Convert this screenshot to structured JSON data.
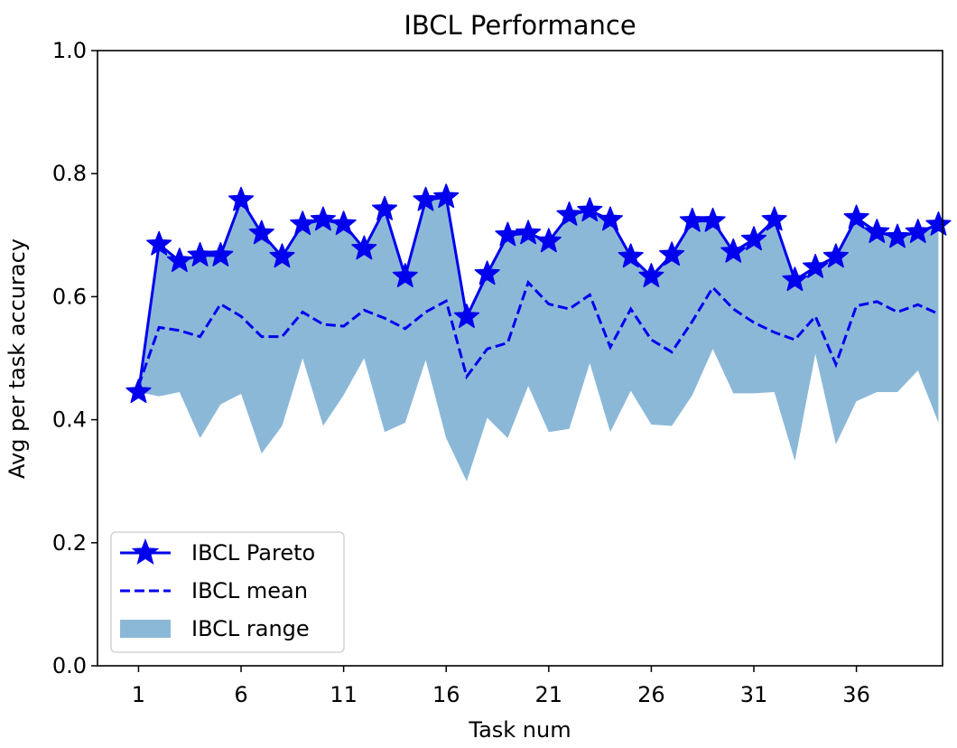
{
  "chart_data": {
    "type": "line",
    "title": "IBCL Performance",
    "xlabel": "Task num",
    "ylabel": "Avg per task accuracy",
    "xlim": [
      -1,
      40.2
    ],
    "ylim": [
      0.0,
      1.0
    ],
    "xticks": [
      1,
      6,
      11,
      16,
      21,
      26,
      31,
      36
    ],
    "xtick_labels": [
      "1",
      "6",
      "11",
      "16",
      "21",
      "26",
      "31",
      "36"
    ],
    "yticks": [
      0.0,
      0.2,
      0.4,
      0.6,
      0.8,
      1.0
    ],
    "ytick_labels": [
      "0.0",
      "0.2",
      "0.4",
      "0.6",
      "0.8",
      "1.0"
    ],
    "grid": false,
    "legend_position": "lower-left",
    "x": [
      1,
      2,
      3,
      4,
      5,
      6,
      7,
      8,
      9,
      10,
      11,
      12,
      13,
      14,
      15,
      16,
      17,
      18,
      19,
      20,
      21,
      22,
      23,
      24,
      25,
      26,
      27,
      28,
      29,
      30,
      31,
      32,
      33,
      34,
      35,
      36,
      37,
      38,
      39,
      40
    ],
    "series": [
      {
        "name": "IBCL Pareto",
        "style": "solid-star",
        "color": "#0000ee",
        "values": [
          0.445,
          0.685,
          0.658,
          0.667,
          0.667,
          0.757,
          0.703,
          0.665,
          0.718,
          0.725,
          0.718,
          0.678,
          0.742,
          0.633,
          0.757,
          0.762,
          0.567,
          0.637,
          0.7,
          0.703,
          0.69,
          0.733,
          0.74,
          0.725,
          0.665,
          0.633,
          0.668,
          0.723,
          0.723,
          0.673,
          0.693,
          0.725,
          0.627,
          0.648,
          0.665,
          0.728,
          0.705,
          0.697,
          0.705,
          0.717
        ]
      },
      {
        "name": "IBCL mean",
        "style": "dashed",
        "color": "#0000ee",
        "values": [
          0.455,
          0.55,
          0.545,
          0.535,
          0.588,
          0.568,
          0.535,
          0.535,
          0.575,
          0.555,
          0.552,
          0.578,
          0.565,
          0.548,
          0.575,
          0.593,
          0.47,
          0.515,
          0.525,
          0.623,
          0.588,
          0.58,
          0.603,
          0.518,
          0.58,
          0.53,
          0.51,
          0.56,
          0.615,
          0.58,
          0.558,
          0.542,
          0.53,
          0.568,
          0.49,
          0.585,
          0.592,
          0.575,
          0.587,
          0.572
        ]
      },
      {
        "name": "IBCL range",
        "style": "fill",
        "color": "#8cb8d8",
        "upper": [
          0.445,
          0.685,
          0.658,
          0.667,
          0.667,
          0.757,
          0.703,
          0.665,
          0.718,
          0.725,
          0.718,
          0.678,
          0.742,
          0.633,
          0.757,
          0.762,
          0.567,
          0.637,
          0.7,
          0.703,
          0.69,
          0.733,
          0.74,
          0.725,
          0.665,
          0.633,
          0.668,
          0.723,
          0.723,
          0.673,
          0.693,
          0.725,
          0.627,
          0.648,
          0.665,
          0.728,
          0.705,
          0.697,
          0.705,
          0.717
        ],
        "lower": [
          0.445,
          0.438,
          0.445,
          0.37,
          0.425,
          0.442,
          0.345,
          0.39,
          0.5,
          0.39,
          0.44,
          0.5,
          0.38,
          0.395,
          0.497,
          0.37,
          0.3,
          0.403,
          0.37,
          0.455,
          0.38,
          0.385,
          0.492,
          0.38,
          0.447,
          0.392,
          0.39,
          0.44,
          0.515,
          0.443,
          0.443,
          0.445,
          0.333,
          0.507,
          0.36,
          0.43,
          0.445,
          0.445,
          0.48,
          0.395
        ]
      }
    ]
  }
}
